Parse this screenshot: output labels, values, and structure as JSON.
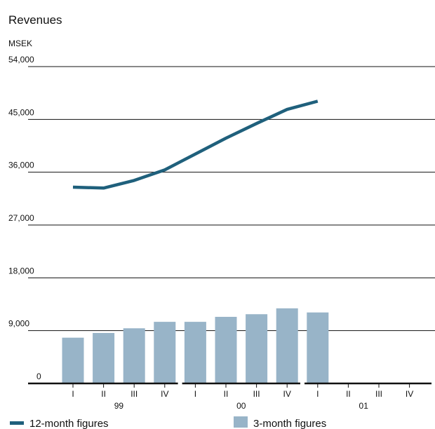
{
  "chart_data": {
    "type": "bar-line",
    "title": "Revenues",
    "y_label": "MSEK",
    "categories": [
      "I",
      "II",
      "III",
      "IV",
      "I",
      "II",
      "III",
      "IV",
      "I",
      "II",
      "III",
      "IV"
    ],
    "groups": [
      "99",
      "00",
      "01"
    ],
    "series": [
      {
        "name": "12-month figures",
        "type": "line",
        "color": "#1f607c",
        "values": [
          33450,
          33300,
          34600,
          36400,
          39100,
          41800,
          44300,
          46700,
          48100,
          null,
          null,
          null
        ]
      },
      {
        "name": "3-month figures",
        "type": "bar",
        "color": "#98b4c8",
        "values": [
          7800,
          8600,
          9400,
          10500,
          10500,
          11350,
          11800,
          12800,
          12100,
          null,
          null,
          null
        ]
      }
    ],
    "ylim": [
      0,
      54000
    ],
    "yticks": [
      0,
      {
        "value": 9000,
        "label": "9,000"
      },
      {
        "value": 18000,
        "label": "18,000"
      },
      {
        "value": 27000,
        "label": "27,000"
      },
      {
        "value": 36000,
        "label": "36,000"
      },
      {
        "value": 45000,
        "label": "45,000"
      },
      {
        "value": 54000,
        "label": "54,000"
      }
    ],
    "grid": true
  }
}
